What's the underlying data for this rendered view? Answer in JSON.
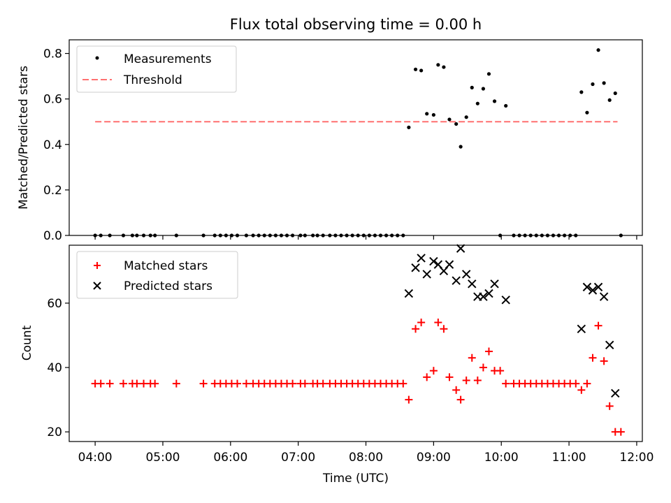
{
  "chart_data": [
    {
      "type": "scatter",
      "title": "Flux total observing time = 0.00 h",
      "ylabel": "Matched/Predicted stars",
      "ylim": [
        0,
        0.86
      ],
      "yticks": [
        0.0,
        0.2,
        0.4,
        0.6,
        0.8
      ],
      "ytick_labels": [
        "0.0",
        "0.2",
        "0.4",
        "0.6",
        "0.8"
      ],
      "legend_position": "top-left",
      "series": [
        {
          "name": "Measurements",
          "marker": "dot",
          "color": "#000000",
          "points": [
            [
              "04:00",
              0
            ],
            [
              "04:05",
              0
            ],
            [
              "04:13",
              0
            ],
            [
              "04:25",
              0
            ],
            [
              "04:33",
              0
            ],
            [
              "04:37",
              0
            ],
            [
              "04:43",
              0
            ],
            [
              "04:49",
              0
            ],
            [
              "04:53",
              0
            ],
            [
              "05:12",
              0
            ],
            [
              "05:36",
              0
            ],
            [
              "05:46",
              0
            ],
            [
              "05:51",
              0
            ],
            [
              "05:56",
              0
            ],
            [
              "06:01",
              0
            ],
            [
              "06:06",
              0
            ],
            [
              "06:14",
              0
            ],
            [
              "06:20",
              0
            ],
            [
              "06:25",
              0
            ],
            [
              "06:30",
              0
            ],
            [
              "06:35",
              0
            ],
            [
              "06:40",
              0
            ],
            [
              "06:45",
              0
            ],
            [
              "06:50",
              0
            ],
            [
              "06:55",
              0
            ],
            [
              "07:02",
              0
            ],
            [
              "07:06",
              0
            ],
            [
              "07:13",
              0
            ],
            [
              "07:17",
              0
            ],
            [
              "07:22",
              0
            ],
            [
              "07:28",
              0
            ],
            [
              "07:33",
              0
            ],
            [
              "07:38",
              0
            ],
            [
              "07:43",
              0
            ],
            [
              "07:48",
              0
            ],
            [
              "07:53",
              0
            ],
            [
              "07:58",
              0
            ],
            [
              "08:03",
              0
            ],
            [
              "08:08",
              0
            ],
            [
              "08:13",
              0
            ],
            [
              "08:18",
              0
            ],
            [
              "08:23",
              0
            ],
            [
              "08:28",
              0
            ],
            [
              "08:33",
              0
            ],
            [
              "08:38",
              0.475
            ],
            [
              "08:44",
              0.73
            ],
            [
              "08:49",
              0.725
            ],
            [
              "08:54",
              0.535
            ],
            [
              "09:00",
              0.53
            ],
            [
              "09:04",
              0.75
            ],
            [
              "09:09",
              0.74
            ],
            [
              "09:14",
              0.51
            ],
            [
              "09:20",
              0.49
            ],
            [
              "09:24",
              0.39
            ],
            [
              "09:29",
              0.52
            ],
            [
              "09:34",
              0.65
            ],
            [
              "09:39",
              0.58
            ],
            [
              "09:44",
              0.645
            ],
            [
              "09:49",
              0.71
            ],
            [
              "09:54",
              0.59
            ],
            [
              "09:59",
              0
            ],
            [
              "10:04",
              0.57
            ],
            [
              "10:11",
              0
            ],
            [
              "10:16",
              0
            ],
            [
              "10:21",
              0
            ],
            [
              "10:26",
              0
            ],
            [
              "10:31",
              0
            ],
            [
              "10:36",
              0
            ],
            [
              "10:41",
              0
            ],
            [
              "10:46",
              0
            ],
            [
              "10:51",
              0
            ],
            [
              "10:56",
              0
            ],
            [
              "11:01",
              0
            ],
            [
              "11:06",
              0
            ],
            [
              "11:11",
              0.63
            ],
            [
              "11:16",
              0.54
            ],
            [
              "11:21",
              0.665
            ],
            [
              "11:26",
              0.815
            ],
            [
              "11:31",
              0.67
            ],
            [
              "11:36",
              0.595
            ],
            [
              "11:41",
              0.625
            ],
            [
              "11:46",
              0
            ]
          ]
        },
        {
          "name": "Threshold",
          "line": "dashed",
          "color": "#ff7070",
          "points": [
            [
              "04:00",
              0.5
            ],
            [
              "11:43",
              0.5
            ]
          ]
        }
      ]
    },
    {
      "type": "scatter",
      "xlabel": "Time (UTC)",
      "ylabel": "Count",
      "xlim": [
        "03:37",
        "12:05"
      ],
      "ylim": [
        17,
        78
      ],
      "yticks": [
        20,
        40,
        60
      ],
      "ytick_labels": [
        "20",
        "40",
        "60"
      ],
      "xtick_labels": [
        "04:00",
        "05:00",
        "06:00",
        "07:00",
        "08:00",
        "09:00",
        "10:00",
        "11:00",
        "12:00"
      ],
      "legend_position": "top-left",
      "series": [
        {
          "name": "Matched stars",
          "marker": "plus",
          "color": "#ff0000",
          "points": [
            [
              "04:00",
              35
            ],
            [
              "04:05",
              35
            ],
            [
              "04:13",
              35
            ],
            [
              "04:25",
              35
            ],
            [
              "04:33",
              35
            ],
            [
              "04:37",
              35
            ],
            [
              "04:43",
              35
            ],
            [
              "04:49",
              35
            ],
            [
              "04:53",
              35
            ],
            [
              "05:12",
              35
            ],
            [
              "05:36",
              35
            ],
            [
              "05:46",
              35
            ],
            [
              "05:51",
              35
            ],
            [
              "05:56",
              35
            ],
            [
              "06:01",
              35
            ],
            [
              "06:06",
              35
            ],
            [
              "06:14",
              35
            ],
            [
              "06:20",
              35
            ],
            [
              "06:25",
              35
            ],
            [
              "06:30",
              35
            ],
            [
              "06:35",
              35
            ],
            [
              "06:40",
              35
            ],
            [
              "06:45",
              35
            ],
            [
              "06:50",
              35
            ],
            [
              "06:55",
              35
            ],
            [
              "07:02",
              35
            ],
            [
              "07:06",
              35
            ],
            [
              "07:13",
              35
            ],
            [
              "07:17",
              35
            ],
            [
              "07:22",
              35
            ],
            [
              "07:28",
              35
            ],
            [
              "07:33",
              35
            ],
            [
              "07:38",
              35
            ],
            [
              "07:43",
              35
            ],
            [
              "07:48",
              35
            ],
            [
              "07:53",
              35
            ],
            [
              "07:58",
              35
            ],
            [
              "08:03",
              35
            ],
            [
              "08:08",
              35
            ],
            [
              "08:13",
              35
            ],
            [
              "08:18",
              35
            ],
            [
              "08:23",
              35
            ],
            [
              "08:28",
              35
            ],
            [
              "08:33",
              35
            ],
            [
              "08:38",
              30
            ],
            [
              "08:44",
              52
            ],
            [
              "08:49",
              54
            ],
            [
              "08:54",
              37
            ],
            [
              "09:00",
              39
            ],
            [
              "09:04",
              54
            ],
            [
              "09:09",
              52
            ],
            [
              "09:14",
              37
            ],
            [
              "09:20",
              33
            ],
            [
              "09:24",
              30
            ],
            [
              "09:29",
              36
            ],
            [
              "09:34",
              43
            ],
            [
              "09:39",
              36
            ],
            [
              "09:44",
              40
            ],
            [
              "09:49",
              45
            ],
            [
              "09:54",
              39
            ],
            [
              "09:59",
              39
            ],
            [
              "10:04",
              35
            ],
            [
              "10:11",
              35
            ],
            [
              "10:16",
              35
            ],
            [
              "10:21",
              35
            ],
            [
              "10:26",
              35
            ],
            [
              "10:31",
              35
            ],
            [
              "10:36",
              35
            ],
            [
              "10:41",
              35
            ],
            [
              "10:46",
              35
            ],
            [
              "10:51",
              35
            ],
            [
              "10:56",
              35
            ],
            [
              "11:01",
              35
            ],
            [
              "11:06",
              35
            ],
            [
              "11:11",
              33
            ],
            [
              "11:16",
              35
            ],
            [
              "11:21",
              43
            ],
            [
              "11:26",
              53
            ],
            [
              "11:31",
              42
            ],
            [
              "11:36",
              28
            ],
            [
              "11:41",
              20
            ],
            [
              "11:46",
              20
            ]
          ]
        },
        {
          "name": "Predicted stars",
          "marker": "x",
          "color": "#000000",
          "points": [
            [
              "08:38",
              63
            ],
            [
              "08:44",
              71
            ],
            [
              "08:49",
              74
            ],
            [
              "08:54",
              69
            ],
            [
              "09:00",
              73
            ],
            [
              "09:04",
              72
            ],
            [
              "09:09",
              70
            ],
            [
              "09:14",
              72
            ],
            [
              "09:20",
              67
            ],
            [
              "09:24",
              77
            ],
            [
              "09:29",
              69
            ],
            [
              "09:34",
              66
            ],
            [
              "09:39",
              62
            ],
            [
              "09:44",
              62
            ],
            [
              "09:49",
              63
            ],
            [
              "09:54",
              66
            ],
            [
              "10:04",
              61
            ],
            [
              "11:11",
              52
            ],
            [
              "11:16",
              65
            ],
            [
              "11:21",
              64
            ],
            [
              "11:26",
              65
            ],
            [
              "11:31",
              62
            ],
            [
              "11:36",
              47
            ],
            [
              "11:41",
              32
            ]
          ]
        }
      ]
    }
  ]
}
